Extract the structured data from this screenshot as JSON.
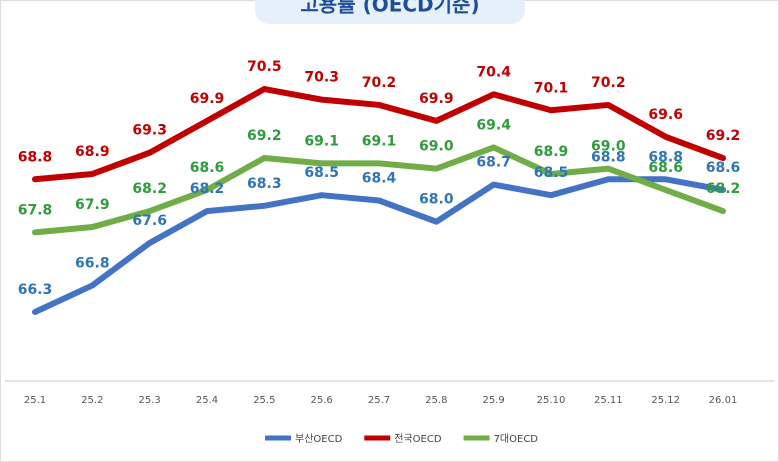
{
  "chart_data": {
    "type": "line",
    "title": "고용률 (OECD기준)",
    "categories": [
      "25.1",
      "25.2",
      "25.3",
      "25.4",
      "25.5",
      "25.6",
      "25.7",
      "25.8",
      "25.9",
      "25.10",
      "25.11",
      "25.12",
      "26.01"
    ],
    "ylim": [
      65,
      71.8
    ],
    "series": [
      {
        "name": "부산OECD",
        "color": "#4472c4",
        "values": [
          66.3,
          66.8,
          67.6,
          68.2,
          68.3,
          68.5,
          68.4,
          68.0,
          68.7,
          68.5,
          68.8,
          68.8,
          68.6
        ],
        "value_labels": [
          "66.3",
          "66.8",
          "67.6",
          "68.2",
          "68.3",
          "68.5",
          "68.4",
          "68.0",
          "68.7",
          "68.5",
          "68.8",
          "68.8",
          "68.6"
        ]
      },
      {
        "name": "전국OECD",
        "color": "#c00000",
        "values": [
          68.8,
          68.9,
          69.3,
          69.9,
          70.5,
          70.3,
          70.2,
          69.9,
          70.4,
          70.1,
          70.2,
          69.6,
          69.2
        ],
        "value_labels": [
          "68.8",
          "68.9",
          "69.3",
          "69.9",
          "70.5",
          "70.3",
          "70.2",
          "69.9",
          "70.4",
          "70.1",
          "70.2",
          "69.6",
          "69.2"
        ]
      },
      {
        "name": "7대OECD",
        "color": "#70ad47",
        "values": [
          67.8,
          67.9,
          68.2,
          68.6,
          69.2,
          69.1,
          69.1,
          69.0,
          69.4,
          68.9,
          69.0,
          68.6,
          68.2
        ],
        "value_labels": [
          "67.8",
          "67.9",
          "68.2",
          "68.6",
          "69.2",
          "69.1",
          "69.1",
          "69.0",
          "69.4",
          "68.9",
          "69.0",
          "68.6",
          "68.2"
        ]
      }
    ]
  }
}
